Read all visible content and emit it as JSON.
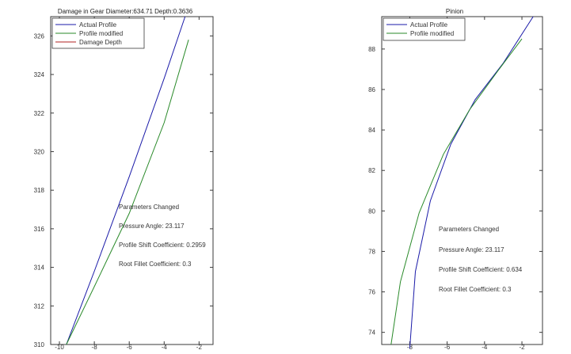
{
  "chart_data": [
    {
      "type": "line",
      "title": "Damage in Gear  Diameter:634.71   Depth:0.3636",
      "xlabel": "",
      "ylabel": "",
      "xlim": [
        -10.5,
        -1.2
      ],
      "ylim": [
        310,
        327
      ],
      "xticks": [
        -10,
        -8,
        -6,
        -4,
        -2
      ],
      "yticks": [
        310,
        312,
        314,
        316,
        318,
        320,
        322,
        324,
        326
      ],
      "legend": {
        "placement": "top-left",
        "entries": [
          "Actual Profile",
          "Profile modified",
          "Damage Depth"
        ]
      },
      "series": [
        {
          "name": "Actual Profile",
          "color": "#1a1aa8",
          "x": [
            -9.6,
            -8.0,
            -6.0,
            -4.0,
            -2.8
          ],
          "y": [
            310.0,
            313.8,
            318.7,
            323.8,
            327.0
          ]
        },
        {
          "name": "Profile modified",
          "color": "#2a8a2a",
          "x": [
            -9.6,
            -8.0,
            -6.0,
            -4.0,
            -2.6
          ],
          "y": [
            310.0,
            313.0,
            316.8,
            321.5,
            325.8
          ]
        }
      ],
      "annotations": [
        "Parameters Changed",
        "Pressure Angle: 23.117",
        "Profile Shift Coefficient: 0.2959",
        "Root Fillet Coefficient: 0.3"
      ]
    },
    {
      "type": "line",
      "title": "Pinion",
      "xlabel": "",
      "ylabel": "",
      "xlim": [
        -9.5,
        -0.9
      ],
      "ylim": [
        73.4,
        89.6
      ],
      "xticks": [
        -8,
        -6,
        -4,
        -2
      ],
      "yticks": [
        74,
        76,
        78,
        80,
        82,
        84,
        86,
        88
      ],
      "legend": {
        "placement": "top-left",
        "entries": [
          "Actual Profile",
          "Profile modified"
        ]
      },
      "series": [
        {
          "name": "Actual Profile",
          "color": "#1a1aa8",
          "x": [
            -8.0,
            -7.7,
            -6.9,
            -5.8,
            -4.5,
            -3.0,
            -1.4
          ],
          "y": [
            73.2,
            77.0,
            80.5,
            83.3,
            85.5,
            87.3,
            89.6
          ]
        },
        {
          "name": "Profile modified",
          "color": "#2a8a2a",
          "x": [
            -9.0,
            -8.5,
            -7.5,
            -6.2,
            -4.8,
            -3.3,
            -2.0
          ],
          "y": [
            73.4,
            76.5,
            79.9,
            82.8,
            85.0,
            86.9,
            88.5
          ]
        }
      ],
      "annotations": [
        "Parameters Changed",
        "Pressure Angle: 23.117",
        "Profile Shift Coefficient: 0.634",
        "Root Fillet Coefficient: 0.3"
      ]
    }
  ]
}
